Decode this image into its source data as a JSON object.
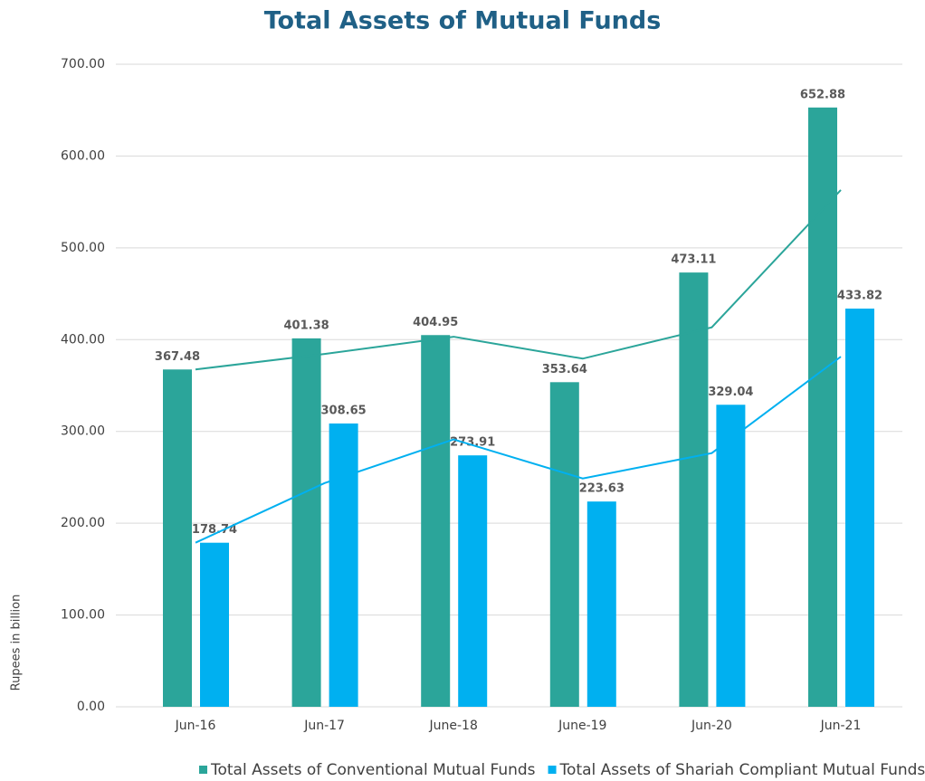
{
  "chart_data": {
    "type": "bar",
    "title": "Total Assets of Mutual Funds",
    "y_label": "Rupees in billion",
    "categories": [
      "Jun-16",
      "Jun-17",
      "June-18",
      "June-19",
      "Jun-20",
      "Jun-21"
    ],
    "series": [
      {
        "name": "Total Assets of Conventional Mutual Funds",
        "color": "#2ba59a",
        "values": [
          367.48,
          401.38,
          404.95,
          353.64,
          473.11,
          652.88
        ]
      },
      {
        "name": "Total Assets of Shariah Compliant Mutual Funds",
        "color": "#00b0f0",
        "values": [
          178.74,
          308.65,
          273.91,
          223.63,
          329.04,
          433.82
        ]
      }
    ],
    "ylim": [
      0,
      700
    ],
    "yticks": [
      {
        "value": 0,
        "label": "0.00"
      },
      {
        "value": 100,
        "label": "100.00"
      },
      {
        "value": 200,
        "label": "200.00"
      },
      {
        "value": 300,
        "label": "300.00"
      },
      {
        "value": 400,
        "label": "400.00"
      },
      {
        "value": 500,
        "label": "500.00"
      },
      {
        "value": 600,
        "label": "600.00"
      },
      {
        "value": 700,
        "label": "700.00"
      }
    ],
    "grid": true,
    "trendline": "moving average",
    "legend": "bottom"
  }
}
